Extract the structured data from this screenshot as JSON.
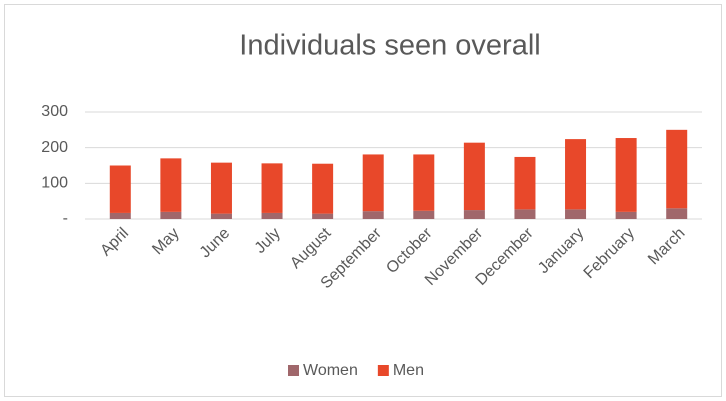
{
  "chart_data": {
    "type": "bar",
    "stacked": true,
    "title": "Individuals seen overall",
    "categories": [
      "April",
      "May",
      "June",
      "July",
      "August",
      "September",
      "October",
      "November",
      "December",
      "January",
      "February",
      "March"
    ],
    "series": [
      {
        "name": "Women",
        "color": "#a0676b",
        "values": [
          17,
          20,
          15,
          17,
          15,
          22,
          23,
          25,
          27,
          27,
          20,
          30
        ]
      },
      {
        "name": "Men",
        "color": "#e8482a",
        "values": [
          133,
          150,
          143,
          139,
          140,
          159,
          158,
          189,
          147,
          197,
          207,
          220
        ]
      }
    ],
    "ylim": [
      0,
      300
    ],
    "yticks": [
      {
        "value": 0,
        "label": "-"
      },
      100,
      200,
      300
    ],
    "grid": true,
    "legend": "bottom"
  }
}
